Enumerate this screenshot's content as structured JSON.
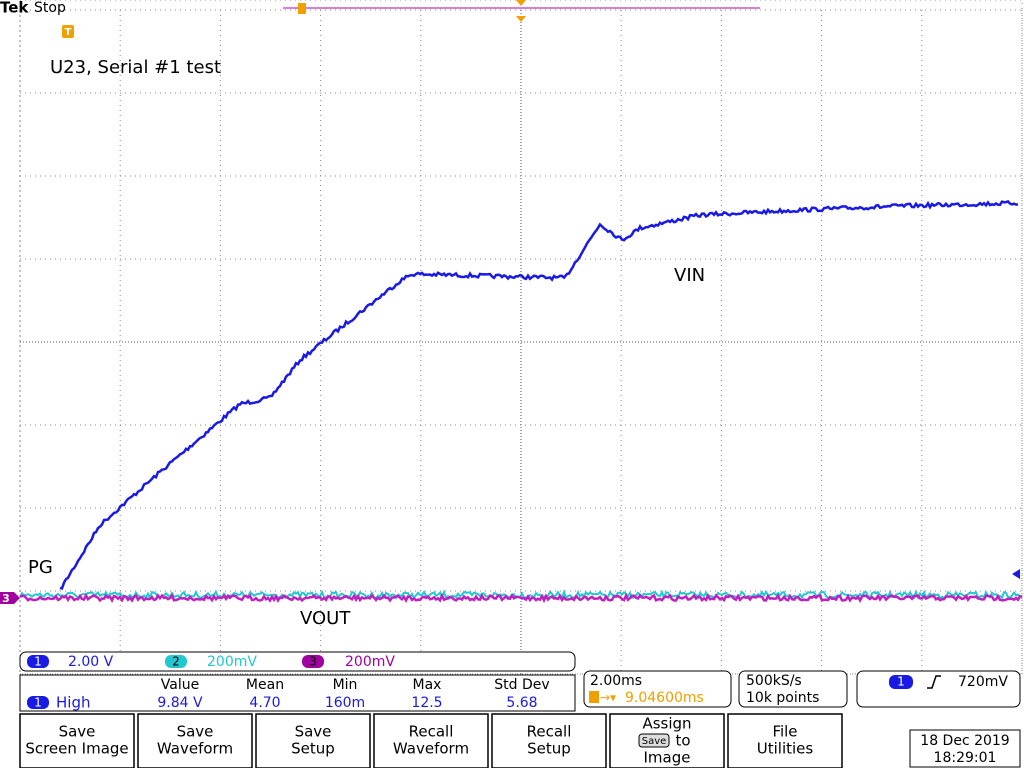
{
  "header": {
    "brand": "Tek",
    "status": "Stop",
    "trigger_marker": "T"
  },
  "annotations": {
    "title": "U23, Serial #1 test",
    "pg": "PG",
    "vin": "VIN",
    "vout": "VOUT",
    "ch3_marker": "3"
  },
  "channels": [
    {
      "number": "1",
      "scale": "2.00 V"
    },
    {
      "number": "2",
      "scale": "200mV"
    },
    {
      "number": "3",
      "scale": "200mV"
    }
  ],
  "measurement": {
    "source": "1",
    "name": "High",
    "headers": [
      "Value",
      "Mean",
      "Min",
      "Max",
      "Std Dev"
    ],
    "values": [
      "9.84 V",
      "4.70",
      "160m",
      "12.5",
      "5.68"
    ]
  },
  "timebase": {
    "scale": "2.00ms",
    "position": "9.04600ms"
  },
  "acquisition": {
    "rate": "500kS/s",
    "length": "10k points"
  },
  "trigger": {
    "source": "1",
    "level": "720mV"
  },
  "buttons": [
    {
      "lines": [
        "Save",
        "Screen Image"
      ]
    },
    {
      "lines": [
        "Save",
        "Waveform"
      ]
    },
    {
      "lines": [
        "Save",
        "Setup"
      ]
    },
    {
      "lines": [
        "Recall",
        "Waveform"
      ]
    },
    {
      "lines": [
        "Recall",
        "Setup"
      ]
    },
    {
      "lines": [
        "Assign",
        "to",
        "Image"
      ],
      "icon": "Save"
    },
    {
      "lines": [
        "File",
        "Utilities"
      ]
    }
  ],
  "datetime": {
    "date": "18 Dec 2019",
    "time": "18:29:01"
  }
}
